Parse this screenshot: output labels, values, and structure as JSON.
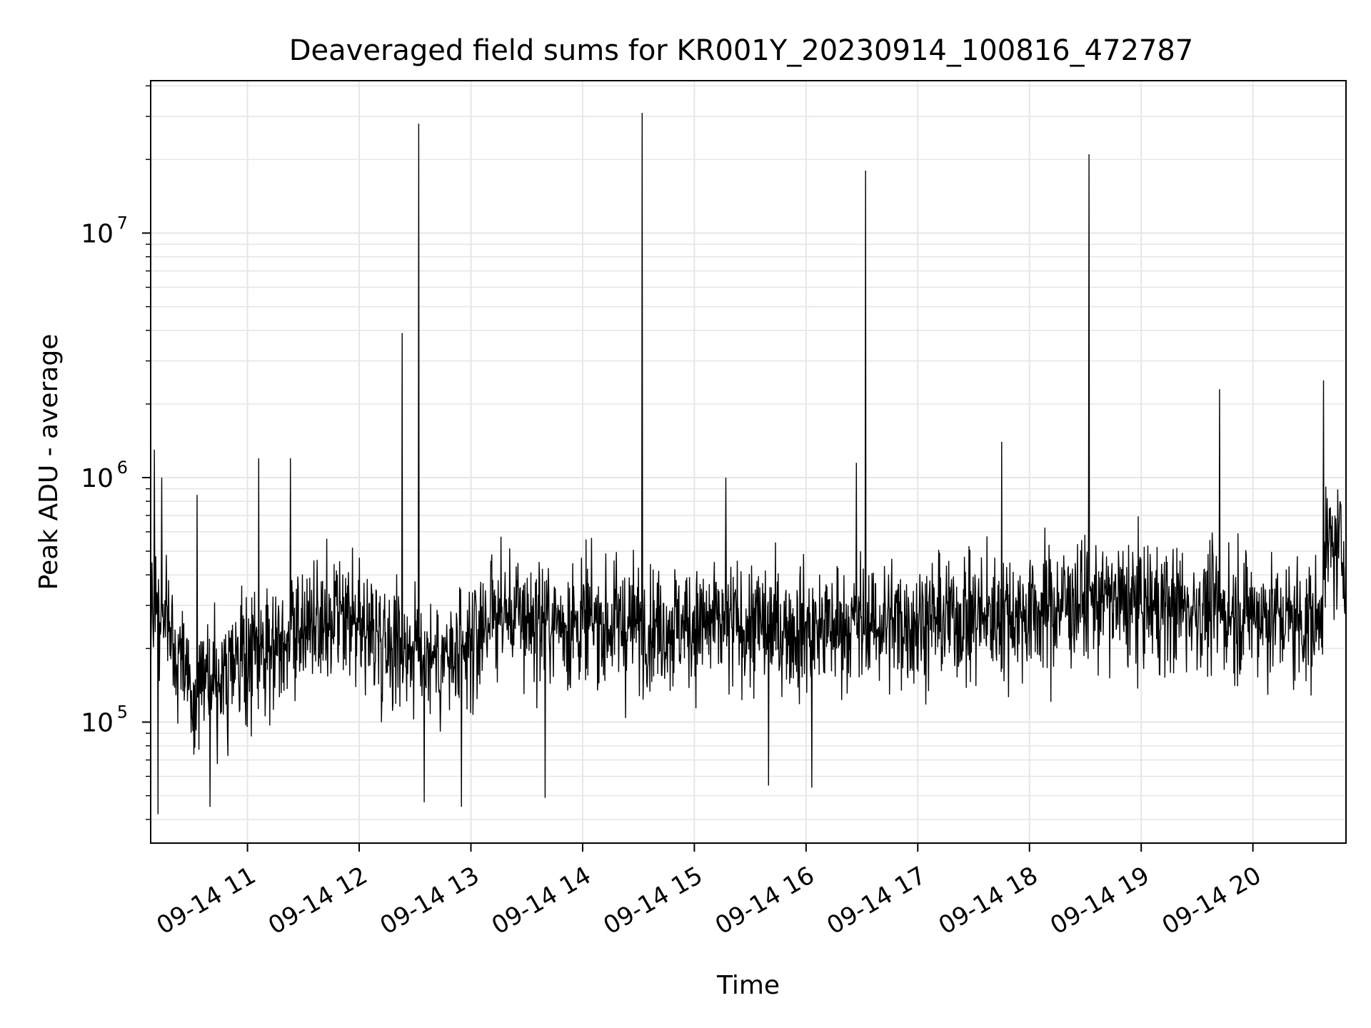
{
  "chart_data": {
    "type": "line",
    "title": "Deaveraged field sums for KR001Y_20230914_100816_472787",
    "xlabel": "Time",
    "ylabel": "Peak ADU - average",
    "x_axis": {
      "kind": "datetime",
      "range": [
        "2023-09-14 10:08",
        "2023-09-14 20:50"
      ],
      "ticks": [
        {
          "t": "2023-09-14 11:00",
          "label": "09-14 11"
        },
        {
          "t": "2023-09-14 12:00",
          "label": "09-14 12"
        },
        {
          "t": "2023-09-14 13:00",
          "label": "09-14 13"
        },
        {
          "t": "2023-09-14 14:00",
          "label": "09-14 14"
        },
        {
          "t": "2023-09-14 15:00",
          "label": "09-14 15"
        },
        {
          "t": "2023-09-14 16:00",
          "label": "09-14 16"
        },
        {
          "t": "2023-09-14 17:00",
          "label": "09-14 17"
        },
        {
          "t": "2023-09-14 18:00",
          "label": "09-14 18"
        },
        {
          "t": "2023-09-14 19:00",
          "label": "09-14 19"
        },
        {
          "t": "2023-09-14 20:00",
          "label": "09-14 20"
        }
      ]
    },
    "y_axis": {
      "scale": "log",
      "range": [
        32000,
        42000000
      ],
      "ticks": [
        {
          "value": 100000,
          "base": "10",
          "exp": "5"
        },
        {
          "value": 1000000,
          "base": "10",
          "exp": "6"
        },
        {
          "value": 10000000,
          "base": "10",
          "exp": "7"
        }
      ]
    },
    "grid": "major and minor",
    "line_color": "#000000",
    "grid_color": "#e6e6e6",
    "series": [
      {
        "baseline": [
          [
            "2023-09-14 10:08",
            300000
          ],
          [
            "2023-09-14 10:20",
            220000
          ],
          [
            "2023-09-14 10:30",
            140000
          ],
          [
            "2023-09-14 10:45",
            150000
          ],
          [
            "2023-09-14 11:00",
            180000
          ],
          [
            "2023-09-14 11:20",
            230000
          ],
          [
            "2023-09-14 12:00",
            250000
          ],
          [
            "2023-09-14 12:30",
            200000
          ],
          [
            "2023-09-14 12:55",
            170000
          ],
          [
            "2023-09-14 13:10",
            280000
          ],
          [
            "2023-09-14 14:00",
            250000
          ],
          [
            "2023-09-14 15:00",
            250000
          ],
          [
            "2023-09-14 16:00",
            240000
          ],
          [
            "2023-09-14 17:00",
            260000
          ],
          [
            "2023-09-14 18:00",
            280000
          ],
          [
            "2023-09-14 18:30",
            320000
          ],
          [
            "2023-09-14 19:00",
            300000
          ],
          [
            "2023-09-14 20:00",
            280000
          ],
          [
            "2023-09-14 20:35",
            250000
          ],
          [
            "2023-09-14 20:40",
            520000
          ],
          [
            "2023-09-14 20:50",
            500000
          ]
        ],
        "spikes": [
          [
            "2023-09-14 10:10",
            1300000
          ],
          [
            "2023-09-14 10:14",
            1000000
          ],
          [
            "2023-09-14 10:33",
            850000
          ],
          [
            "2023-09-14 11:06",
            1200000
          ],
          [
            "2023-09-14 11:23",
            1200000
          ],
          [
            "2023-09-14 12:23",
            3900000
          ],
          [
            "2023-09-14 12:32",
            28000000
          ],
          [
            "2023-09-14 14:32",
            31000000
          ],
          [
            "2023-09-14 15:17",
            1000000
          ],
          [
            "2023-09-14 16:27",
            1150000
          ],
          [
            "2023-09-14 16:32",
            18000000
          ],
          [
            "2023-09-14 17:45",
            1400000
          ],
          [
            "2023-09-14 18:32",
            21000000
          ],
          [
            "2023-09-14 19:42",
            2300000
          ],
          [
            "2023-09-14 20:38",
            2500000
          ]
        ],
        "dips": [
          [
            "2023-09-14 10:12",
            42000
          ],
          [
            "2023-09-14 10:40",
            45000
          ],
          [
            "2023-09-14 12:35",
            47000
          ],
          [
            "2023-09-14 12:55",
            45000
          ],
          [
            "2023-09-14 13:40",
            49000
          ],
          [
            "2023-09-14 15:40",
            55000
          ],
          [
            "2023-09-14 16:03",
            54000
          ]
        ]
      }
    ]
  }
}
